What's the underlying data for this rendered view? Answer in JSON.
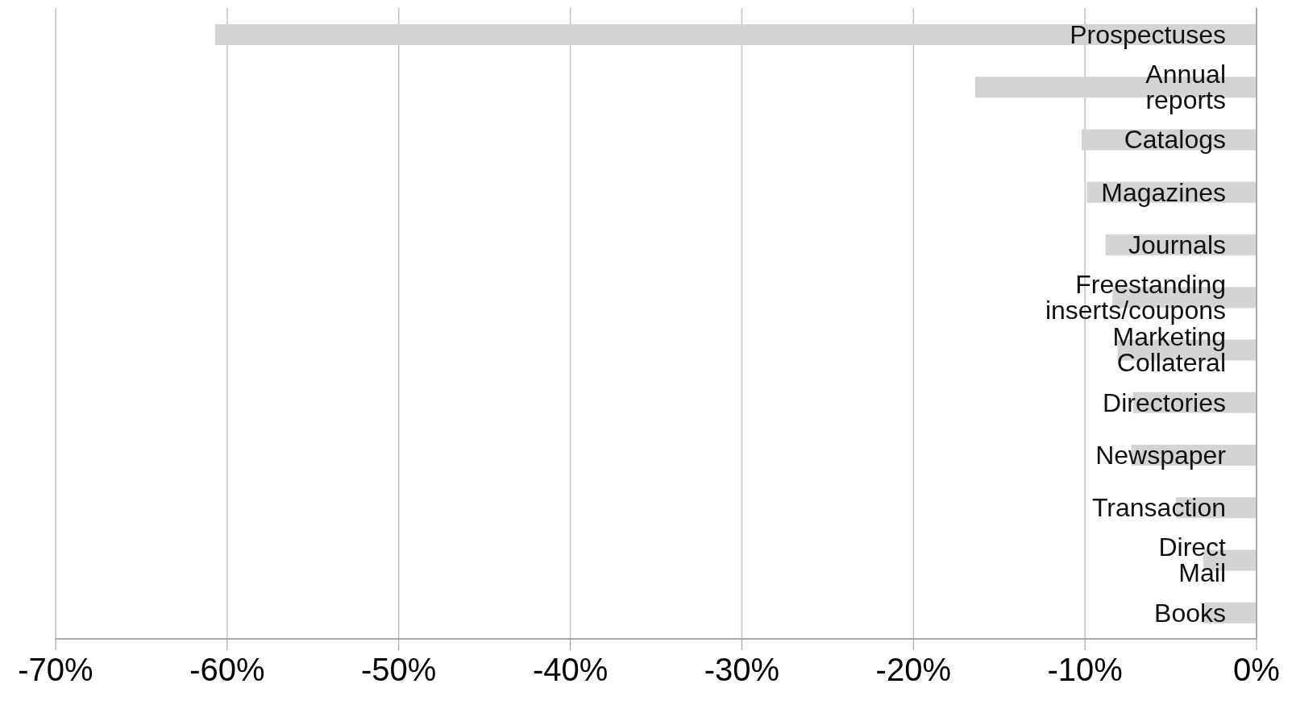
{
  "chart_data": {
    "type": "bar",
    "orientation": "horizontal",
    "categories": [
      "Prospectuses",
      "Annual reports",
      "Catalogs",
      "Magazines",
      "Journals",
      "Freestanding inserts/coupons",
      "Marketing Collateral",
      "Directories",
      "Newspaper",
      "Transaction",
      "Direct Mail",
      "Books"
    ],
    "values": [
      -60.7,
      -16.4,
      -10.2,
      -9.9,
      -8.8,
      -8.4,
      -8.1,
      -7.2,
      -7.3,
      -4.7,
      -3.1,
      -3.1
    ],
    "color": "#d4d4d4",
    "xlim": [
      -70,
      0
    ],
    "xticks": [
      {
        "value": -70,
        "label": "-70%"
      },
      {
        "value": -60,
        "label": "-60%"
      },
      {
        "value": -50,
        "label": "-50%"
      },
      {
        "value": -40,
        "label": "-40%"
      },
      {
        "value": -30,
        "label": "-30%"
      },
      {
        "value": -20,
        "label": "-20%"
      },
      {
        "value": -10,
        "label": "-10%"
      },
      {
        "value": 0,
        "label": "0%"
      }
    ],
    "grid": "x"
  }
}
